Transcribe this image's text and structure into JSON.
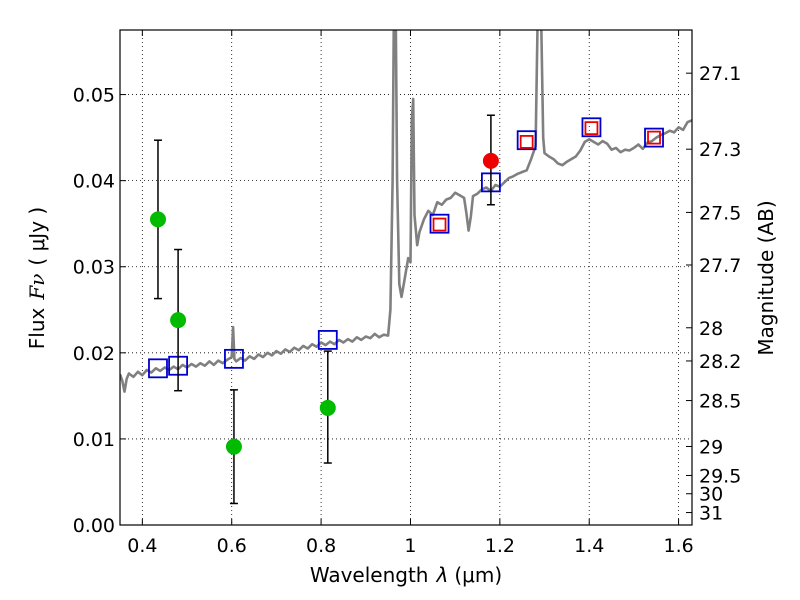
{
  "chart_data": {
    "type": "scatter",
    "xlabel_prefix": "Wavelength",
    "xlabel_symbol": "λ",
    "xlabel_unit": "(μm)",
    "ylabel_prefix": "Flux",
    "ylabel_symbol": "Fν",
    "ylabel_unit": "( μJy )",
    "ylabel_right": "Magnitude (AB)",
    "xlim": [
      0.35,
      1.63
    ],
    "ylim": [
      0.0,
      0.0575
    ],
    "grid": true,
    "x_ticks": [
      {
        "value": 0.4,
        "label": "0.4"
      },
      {
        "value": 0.6,
        "label": "0.6"
      },
      {
        "value": 0.8,
        "label": "0.8"
      },
      {
        "value": 1.0,
        "label": "1"
      },
      {
        "value": 1.2,
        "label": "1.2"
      },
      {
        "value": 1.4,
        "label": "1.4"
      },
      {
        "value": 1.6,
        "label": "1.6"
      }
    ],
    "y_ticks": [
      {
        "value": 0.0,
        "label": "0.00"
      },
      {
        "value": 0.01,
        "label": "0.01"
      },
      {
        "value": 0.02,
        "label": "0.02"
      },
      {
        "value": 0.03,
        "label": "0.03"
      },
      {
        "value": 0.04,
        "label": "0.04"
      },
      {
        "value": 0.05,
        "label": "0.05"
      }
    ],
    "mag_ticks": [
      {
        "value": 27.1,
        "label": "27.1"
      },
      {
        "value": 27.3,
        "label": "27.3"
      },
      {
        "value": 27.5,
        "label": "27.5"
      },
      {
        "value": 27.7,
        "label": "27.7"
      },
      {
        "value": 28.0,
        "label": "28"
      },
      {
        "value": 28.2,
        "label": "28.2"
      },
      {
        "value": 28.5,
        "label": "28.5"
      },
      {
        "value": 29.0,
        "label": "29"
      },
      {
        "value": 29.5,
        "label": "29.5"
      },
      {
        "value": 30.0,
        "label": "30"
      },
      {
        "value": 31.0,
        "label": "31"
      }
    ],
    "series": [
      {
        "name": "model-spectrum",
        "kind": "line",
        "color": "#808080",
        "points": [
          [
            0.35,
            0.0175
          ],
          [
            0.355,
            0.0168
          ],
          [
            0.36,
            0.0155
          ],
          [
            0.365,
            0.017
          ],
          [
            0.37,
            0.0176
          ],
          [
            0.38,
            0.0172
          ],
          [
            0.39,
            0.0178
          ],
          [
            0.4,
            0.0174
          ],
          [
            0.41,
            0.018
          ],
          [
            0.42,
            0.0177
          ],
          [
            0.43,
            0.0182
          ],
          [
            0.44,
            0.0179
          ],
          [
            0.45,
            0.0183
          ],
          [
            0.46,
            0.018
          ],
          [
            0.47,
            0.0184
          ],
          [
            0.48,
            0.0181
          ],
          [
            0.49,
            0.0186
          ],
          [
            0.5,
            0.0183
          ],
          [
            0.51,
            0.0187
          ],
          [
            0.52,
            0.0184
          ],
          [
            0.53,
            0.0188
          ],
          [
            0.54,
            0.0185
          ],
          [
            0.55,
            0.019
          ],
          [
            0.56,
            0.0186
          ],
          [
            0.57,
            0.0191
          ],
          [
            0.58,
            0.0188
          ],
          [
            0.59,
            0.0192
          ],
          [
            0.6,
            0.0195
          ],
          [
            0.603,
            0.023
          ],
          [
            0.606,
            0.0193
          ],
          [
            0.61,
            0.019
          ],
          [
            0.62,
            0.0194
          ],
          [
            0.63,
            0.0191
          ],
          [
            0.64,
            0.0196
          ],
          [
            0.65,
            0.0193
          ],
          [
            0.66,
            0.0198
          ],
          [
            0.67,
            0.0195
          ],
          [
            0.68,
            0.02
          ],
          [
            0.69,
            0.0197
          ],
          [
            0.7,
            0.0202
          ],
          [
            0.71,
            0.0199
          ],
          [
            0.72,
            0.0204
          ],
          [
            0.73,
            0.0201
          ],
          [
            0.74,
            0.0206
          ],
          [
            0.75,
            0.0203
          ],
          [
            0.76,
            0.0208
          ],
          [
            0.77,
            0.0205
          ],
          [
            0.78,
            0.021
          ],
          [
            0.79,
            0.0207
          ],
          [
            0.8,
            0.0212
          ],
          [
            0.81,
            0.0209
          ],
          [
            0.82,
            0.0213
          ],
          [
            0.83,
            0.021
          ],
          [
            0.84,
            0.0215
          ],
          [
            0.85,
            0.0212
          ],
          [
            0.86,
            0.0216
          ],
          [
            0.87,
            0.0213
          ],
          [
            0.88,
            0.0218
          ],
          [
            0.89,
            0.0215
          ],
          [
            0.9,
            0.0219
          ],
          [
            0.91,
            0.0217
          ],
          [
            0.92,
            0.0222
          ],
          [
            0.93,
            0.0218
          ],
          [
            0.94,
            0.0221
          ],
          [
            0.95,
            0.022
          ],
          [
            0.955,
            0.025
          ],
          [
            0.96,
            0.04
          ],
          [
            0.963,
            0.06
          ],
          [
            0.967,
            0.06
          ],
          [
            0.97,
            0.04
          ],
          [
            0.975,
            0.028
          ],
          [
            0.98,
            0.0265
          ],
          [
            0.985,
            0.028
          ],
          [
            0.99,
            0.0295
          ],
          [
            0.995,
            0.031
          ],
          [
            1.0,
            0.0305
          ],
          [
            1.003,
            0.047
          ],
          [
            1.006,
            0.0495
          ],
          [
            1.009,
            0.036
          ],
          [
            1.015,
            0.0325
          ],
          [
            1.02,
            0.034
          ],
          [
            1.03,
            0.0355
          ],
          [
            1.04,
            0.0365
          ],
          [
            1.05,
            0.036
          ],
          [
            1.06,
            0.0375
          ],
          [
            1.07,
            0.0372
          ],
          [
            1.08,
            0.0378
          ],
          [
            1.09,
            0.038
          ],
          [
            1.1,
            0.0386
          ],
          [
            1.11,
            0.0383
          ],
          [
            1.12,
            0.038
          ],
          [
            1.125,
            0.0363
          ],
          [
            1.13,
            0.0342
          ],
          [
            1.135,
            0.0358
          ],
          [
            1.14,
            0.0382
          ],
          [
            1.15,
            0.0385
          ],
          [
            1.16,
            0.039
          ],
          [
            1.17,
            0.0392
          ],
          [
            1.18,
            0.0388
          ],
          [
            1.19,
            0.0395
          ],
          [
            1.2,
            0.0393
          ],
          [
            1.21,
            0.0398
          ],
          [
            1.22,
            0.0403
          ],
          [
            1.23,
            0.0405
          ],
          [
            1.24,
            0.0408
          ],
          [
            1.25,
            0.041
          ],
          [
            1.26,
            0.0412
          ],
          [
            1.27,
            0.0425
          ],
          [
            1.28,
            0.044
          ],
          [
            1.285,
            0.06
          ],
          [
            1.292,
            0.06
          ],
          [
            1.297,
            0.045
          ],
          [
            1.3,
            0.0432
          ],
          [
            1.31,
            0.0428
          ],
          [
            1.32,
            0.0425
          ],
          [
            1.33,
            0.042
          ],
          [
            1.34,
            0.0418
          ],
          [
            1.35,
            0.0422
          ],
          [
            1.36,
            0.0425
          ],
          [
            1.37,
            0.0428
          ],
          [
            1.38,
            0.0435
          ],
          [
            1.39,
            0.0445
          ],
          [
            1.4,
            0.0448
          ],
          [
            1.41,
            0.0445
          ],
          [
            1.42,
            0.0442
          ],
          [
            1.43,
            0.0446
          ],
          [
            1.44,
            0.0443
          ],
          [
            1.45,
            0.0436
          ],
          [
            1.46,
            0.0438
          ],
          [
            1.47,
            0.0433
          ],
          [
            1.48,
            0.0436
          ],
          [
            1.49,
            0.0435
          ],
          [
            1.5,
            0.0438
          ],
          [
            1.51,
            0.0442
          ],
          [
            1.52,
            0.0437
          ],
          [
            1.53,
            0.0444
          ],
          [
            1.54,
            0.0446
          ],
          [
            1.55,
            0.045
          ],
          [
            1.56,
            0.0453
          ],
          [
            1.57,
            0.0455
          ],
          [
            1.58,
            0.0458
          ],
          [
            1.59,
            0.0456
          ],
          [
            1.6,
            0.0462
          ],
          [
            1.61,
            0.0459
          ],
          [
            1.62,
            0.0468
          ],
          [
            1.63,
            0.047
          ]
        ]
      },
      {
        "name": "model-photometry",
        "kind": "open-square",
        "color": "#0000cc",
        "points": [
          [
            0.435,
            0.0182
          ],
          [
            0.48,
            0.0185
          ],
          [
            0.605,
            0.0193
          ],
          [
            0.815,
            0.0215
          ],
          [
            1.065,
            0.035
          ],
          [
            1.18,
            0.0398
          ],
          [
            1.26,
            0.0447
          ],
          [
            1.405,
            0.0462
          ],
          [
            1.545,
            0.045
          ]
        ]
      },
      {
        "name": "detections-optical",
        "kind": "filled-circle",
        "color": "#00bb00",
        "points": [
          [
            0.435,
            0.0355
          ],
          [
            0.48,
            0.0238
          ],
          [
            0.605,
            0.0091
          ],
          [
            0.815,
            0.0136
          ]
        ],
        "errors": [
          [
            0.0092,
            0.0092
          ],
          [
            0.0082,
            0.0082
          ],
          [
            0.0066,
            0.0066
          ],
          [
            0.0064,
            0.0066
          ]
        ]
      },
      {
        "name": "detections-nir",
        "kind": "filled-circle",
        "color": "#ee0000",
        "points": [
          [
            1.18,
            0.0423
          ]
        ],
        "errors": [
          [
            0.0051,
            0.0053
          ]
        ]
      },
      {
        "name": "nir-photometry",
        "kind": "open-square",
        "color": "#ee0000",
        "points": [
          [
            1.065,
            0.0349
          ],
          [
            1.26,
            0.0445
          ],
          [
            1.405,
            0.0461
          ],
          [
            1.545,
            0.045
          ]
        ]
      }
    ]
  }
}
